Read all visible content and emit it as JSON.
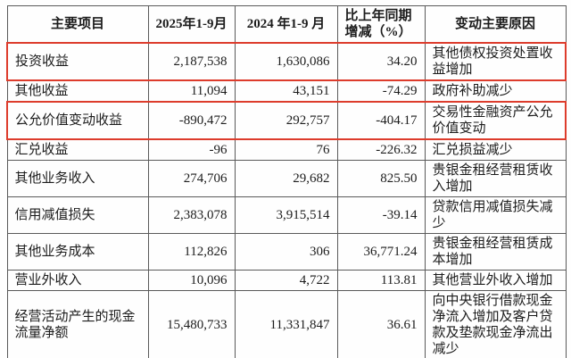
{
  "colors": {
    "highlight_box": "#DD3C2C",
    "table_border": "#5A5A5A",
    "text": "#1C1C1C",
    "background": "#FEFEFE"
  },
  "table": {
    "headers": [
      "主要项目",
      "2025年1-9月",
      "2024 年1-9 月",
      "比上年同期增减（%）",
      "变动主要原因"
    ],
    "rows": [
      {
        "item": "投资收益",
        "v2025": "2,187,538",
        "v2024": "1,630,086",
        "change": "34.20",
        "reason": "其他债权投资处置收益增加",
        "highlighted": true
      },
      {
        "item": "其他收益",
        "v2025": "11,094",
        "v2024": "43,151",
        "change": "-74.29",
        "reason": "政府补助减少",
        "highlighted": false
      },
      {
        "item": "公允价值变动收益",
        "v2025": "-890,472",
        "v2024": "292,757",
        "change": "-404.17",
        "reason": "交易性金融资产公允价值变动",
        "highlighted": true
      },
      {
        "item": "汇兑收益",
        "v2025": "-96",
        "v2024": "76",
        "change": "-226.32",
        "reason": "汇兑损益减少",
        "highlighted": false
      },
      {
        "item": "其他业务收入",
        "v2025": "274,706",
        "v2024": "29,682",
        "change": "825.50",
        "reason": "贵银金租经营租赁收入增加",
        "highlighted": false
      },
      {
        "item": "信用减值损失",
        "v2025": "2,383,078",
        "v2024": "3,915,514",
        "change": "-39.14",
        "reason": "贷款信用减值损失减少",
        "highlighted": false
      },
      {
        "item": "其他业务成本",
        "v2025": "112,826",
        "v2024": "306",
        "change": "36,771.24",
        "reason": "贵银金租经营租赁成本增加",
        "highlighted": false
      },
      {
        "item": "营业外收入",
        "v2025": "10,096",
        "v2024": "4,722",
        "change": "113.81",
        "reason": "其他营业外收入增加",
        "highlighted": false
      },
      {
        "item": "经营活动产生的现金流量净额",
        "v2025": "15,480,733",
        "v2024": "11,331,847",
        "change": "36.61",
        "reason": "向中央银行借款现金净流入增加及客户贷款及垫款现金净流出减少",
        "highlighted": false
      }
    ]
  }
}
